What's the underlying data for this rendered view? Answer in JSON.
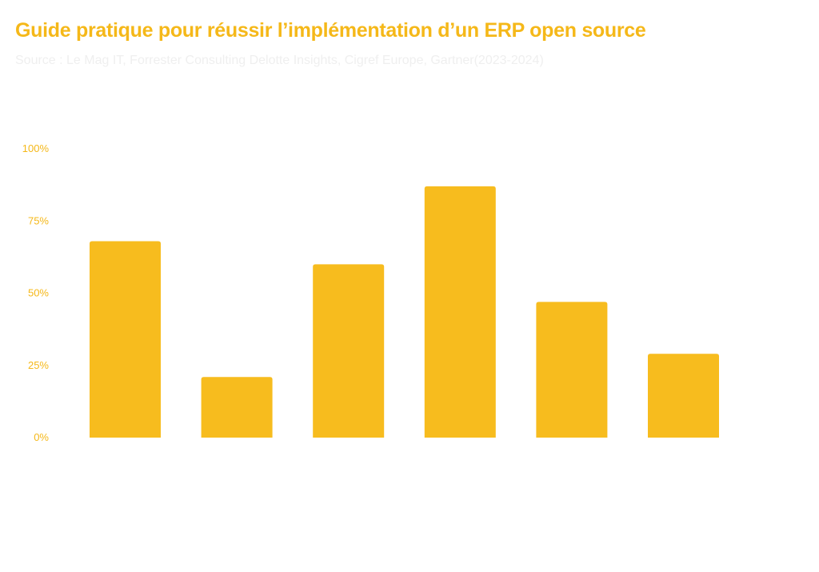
{
  "chart_data": {
    "type": "bar",
    "title": "Guide pratique pour réussir l’implémentation d’un ERP open source",
    "subtitle": "Source : Le Mag IT, Forrester Consulting Delotte Insights, Cigref Europe, Gartner(2023-2024)",
    "xlabel": "",
    "ylabel": "",
    "ylim": [
      0,
      100
    ],
    "yticks": [
      "0%",
      "25%",
      "50%",
      "75%",
      "100%"
    ],
    "ytick_values": [
      0,
      25,
      50,
      75,
      100
    ],
    "values": [
      68,
      21,
      60,
      87,
      47,
      29
    ],
    "grid": false,
    "legend": "none"
  },
  "colors": {
    "bar": "#F7BC1E",
    "title": "#F5B819",
    "subtitle": "#EFEFEF",
    "tick": "#F5B819"
  }
}
